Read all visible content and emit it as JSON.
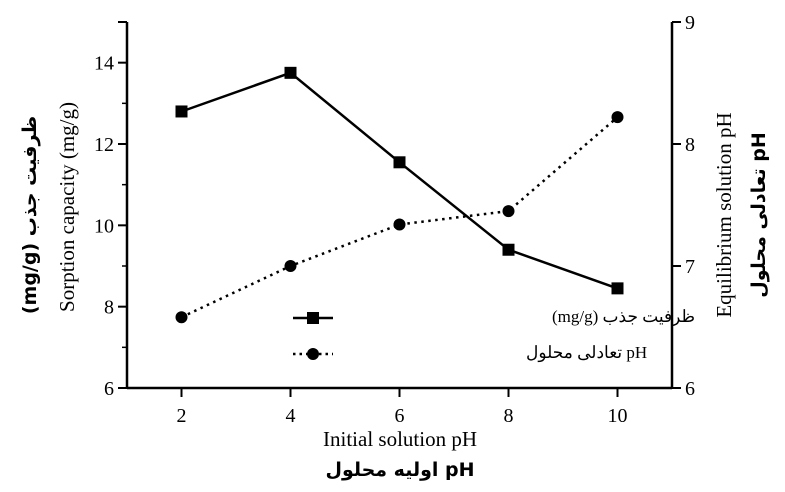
{
  "chart_data": {
    "type": "line",
    "x": [
      2,
      4,
      6,
      8,
      10
    ],
    "xlim": [
      1,
      11
    ],
    "xticks": [
      "2",
      "4",
      "6",
      "8",
      "10"
    ],
    "ylim_left": [
      6,
      15
    ],
    "yticks_left": [
      "6",
      "8",
      "10",
      "12",
      "14"
    ],
    "ylim_right": [
      6,
      9
    ],
    "yticks_right": [
      "6",
      "7",
      "8",
      "9"
    ],
    "xlabel": "Initial solution pH",
    "xlabel_fa": "pH اولیه محلول",
    "ylabel_left": "Sorption capacity  (mg/g)",
    "ylabel_left_fa": "ظرفیت جذب (mg/g)",
    "ylabel_right": "Equilibrium solution pH",
    "ylabel_right_fa": "pH تعادلی محلول",
    "grid": false,
    "legend_position": "bottom-center",
    "series": [
      {
        "name": "ظرفیت جذب (mg/g)",
        "axis": "left",
        "style": "solid",
        "marker": "square",
        "values": [
          12.8,
          13.75,
          11.55,
          9.4,
          8.45
        ]
      },
      {
        "name": "pH تعادلی محلول",
        "axis": "right",
        "style": "dotted",
        "marker": "circle",
        "values": [
          6.58,
          7.0,
          7.34,
          7.45,
          8.22
        ]
      }
    ]
  }
}
